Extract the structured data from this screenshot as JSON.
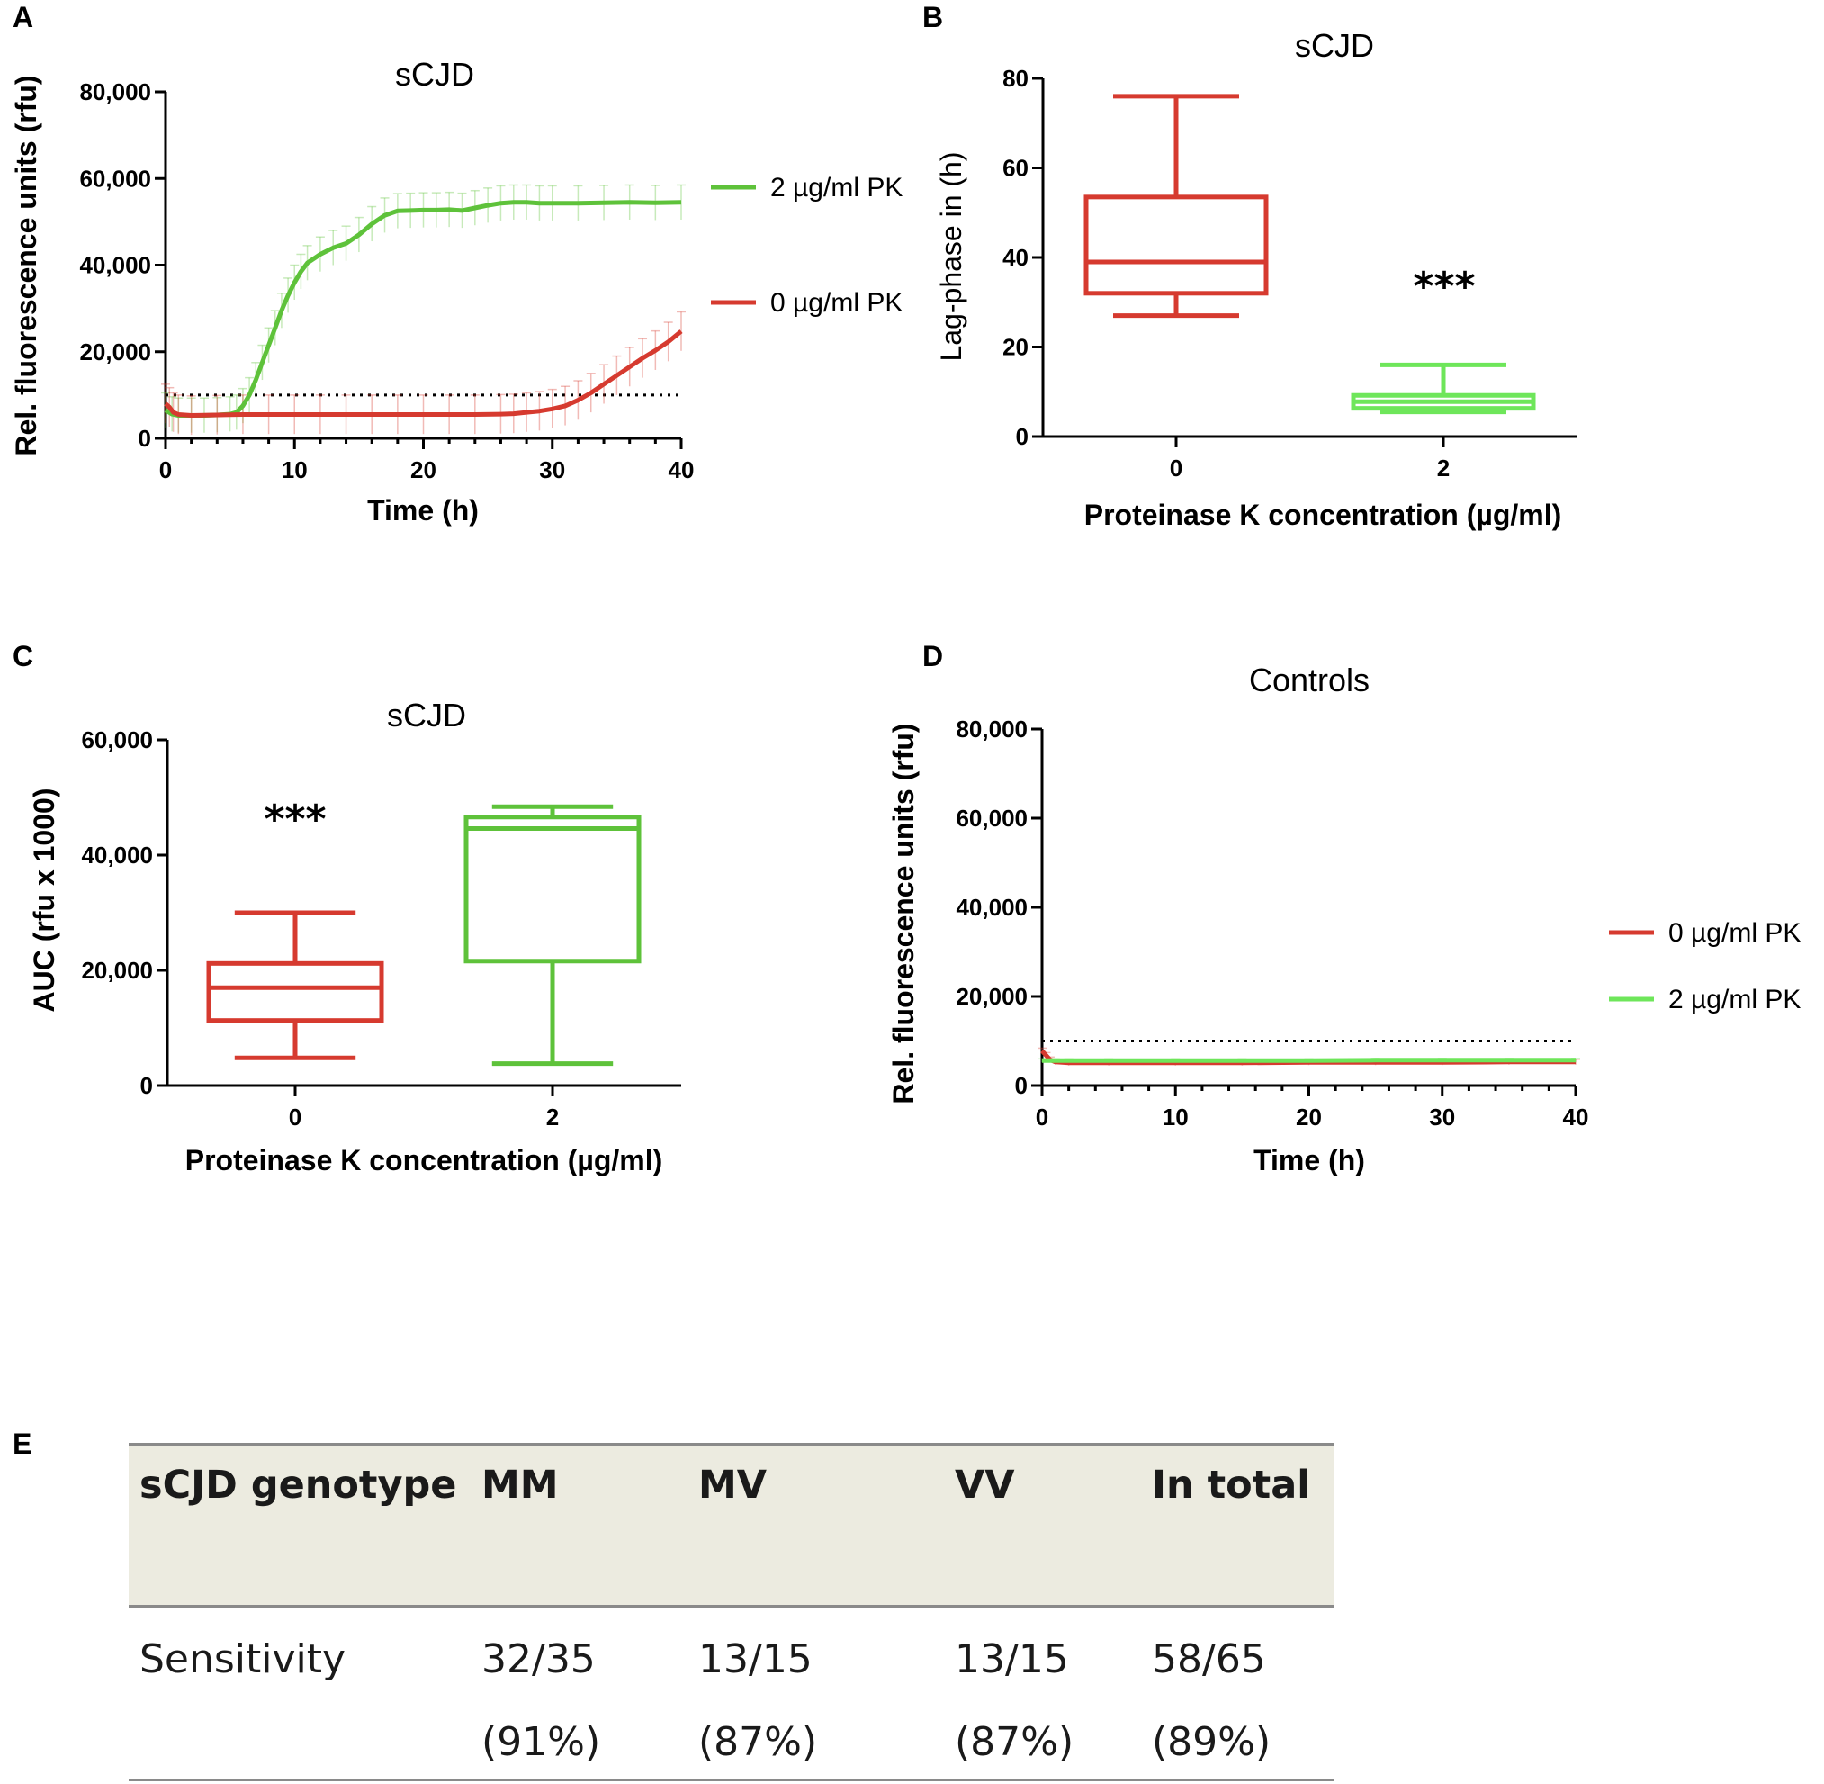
{
  "colors": {
    "red": "#d63a2f",
    "green": "#5ec23a",
    "lightgreen": "#6ee65a",
    "black": "#000000"
  },
  "chart_data": [
    {
      "panel": "A",
      "type": "line",
      "title": "sCJD",
      "xlabel": "Time (h)",
      "ylabel": "Rel. fluorescence units (rfu)",
      "xlim": [
        0,
        40
      ],
      "ylim": [
        0,
        80000
      ],
      "xticks": [
        "0",
        "10",
        "20",
        "30",
        "40"
      ],
      "yticks": [
        "0",
        "20,000",
        "40,000",
        "60,000",
        "80,000"
      ],
      "threshold": 10000,
      "legend_position": "right",
      "series": [
        {
          "name": "2 µg/ml PK",
          "color": "#5ec23a",
          "x": [
            0,
            0.5,
            1,
            2,
            3,
            4,
            5,
            5.5,
            6,
            6.5,
            7,
            7.5,
            8,
            8.5,
            9,
            9.5,
            10,
            10.5,
            11,
            12,
            13,
            14,
            15,
            16,
            17,
            18,
            19,
            20,
            21,
            22,
            23,
            24,
            25,
            26,
            27,
            28,
            29,
            30,
            32,
            34,
            36,
            38,
            40
          ],
          "y": [
            6500,
            5600,
            5300,
            5300,
            5300,
            5400,
            5600,
            6000,
            7500,
            10000,
            13500,
            17500,
            21500,
            25500,
            29500,
            33000,
            36000,
            38500,
            40500,
            42500,
            44000,
            45000,
            47000,
            49500,
            51500,
            52500,
            52600,
            52700,
            52700,
            52800,
            52600,
            53200,
            53800,
            54300,
            54500,
            54500,
            54300,
            54300,
            54300,
            54400,
            54500,
            54400,
            54500
          ],
          "error": 4000
        },
        {
          "name": "0 µg/ml PK",
          "color": "#d63a2f",
          "x": [
            0,
            0.3,
            0.6,
            1,
            2,
            4,
            6,
            8,
            10,
            12,
            14,
            16,
            18,
            20,
            22,
            24,
            26,
            27,
            28,
            29,
            30,
            31,
            32,
            33,
            34,
            35,
            36,
            37,
            38,
            39,
            40
          ],
          "y": [
            8000,
            7200,
            6000,
            5500,
            5300,
            5400,
            5500,
            5500,
            5500,
            5500,
            5500,
            5500,
            5500,
            5500,
            5500,
            5500,
            5600,
            5700,
            6000,
            6300,
            6800,
            7500,
            8800,
            10500,
            12500,
            14500,
            16500,
            18500,
            20300,
            22300,
            24700
          ],
          "error": 4500
        }
      ]
    },
    {
      "panel": "B",
      "type": "box",
      "title": "sCJD",
      "xlabel": "Proteinase K concentration (µg/ml)",
      "ylabel": "Lag-phase in (h)",
      "ylim": [
        0,
        80
      ],
      "yticks": [
        "0",
        "20",
        "40",
        "60",
        "80"
      ],
      "categories": [
        "0",
        "2"
      ],
      "boxes": [
        {
          "category": "0",
          "min": 27,
          "q1": 32,
          "median": 39,
          "q3": 53.5,
          "max": 76,
          "color": "#d63a2f"
        },
        {
          "category": "2",
          "min": 5.5,
          "q1": 6.3,
          "median": 7.8,
          "q3": 9.2,
          "max": 16,
          "color": "#6ee65a"
        }
      ],
      "annotation": "***"
    },
    {
      "panel": "C",
      "type": "box",
      "title": "sCJD",
      "xlabel": "Proteinase K concentration (µg/ml)",
      "ylabel": "AUC (rfu x 1000)",
      "ylim": [
        0,
        60000
      ],
      "yticks": [
        "0",
        "20,000",
        "40,000",
        "60,000"
      ],
      "categories": [
        "0",
        "2"
      ],
      "boxes": [
        {
          "category": "0",
          "min": 4800,
          "q1": 11300,
          "median": 17000,
          "q3": 21200,
          "max": 30000,
          "color": "#d63a2f"
        },
        {
          "category": "2",
          "min": 3800,
          "q1": 21600,
          "median": 44600,
          "q3": 46600,
          "max": 48400,
          "color": "#5ec23a"
        }
      ],
      "annotation": "***"
    },
    {
      "panel": "D",
      "type": "line",
      "title": "Controls",
      "xlabel": "Time (h)",
      "ylabel": "Rel. fluorescence units (rfu)",
      "xlim": [
        0,
        40
      ],
      "ylim": [
        0,
        80000
      ],
      "xticks": [
        "0",
        "10",
        "20",
        "30",
        "40"
      ],
      "yticks": [
        "0",
        "20,000",
        "40,000",
        "60,000",
        "80,000"
      ],
      "threshold": 10000,
      "legend_position": "right",
      "series": [
        {
          "name": "0 µg/ml PK",
          "color": "#d63a2f",
          "x": [
            0,
            0.3,
            0.6,
            1,
            2,
            5,
            10,
            15,
            20,
            25,
            30,
            35,
            40
          ],
          "y": [
            7800,
            6800,
            5800,
            5300,
            5100,
            5100,
            5100,
            5100,
            5200,
            5200,
            5200,
            5300,
            5300
          ],
          "error": 600
        },
        {
          "name": "2 µg/ml PK",
          "color": "#6ee65a",
          "x": [
            0,
            1,
            2,
            5,
            10,
            15,
            20,
            25,
            30,
            35,
            40
          ],
          "y": [
            5600,
            5600,
            5600,
            5600,
            5600,
            5600,
            5600,
            5700,
            5700,
            5700,
            5700
          ],
          "error": 400
        }
      ]
    }
  ],
  "panel_letters": [
    "A",
    "B",
    "C",
    "D",
    "E"
  ],
  "table_e": {
    "headers": [
      "sCJD genotype",
      "MM",
      "MV",
      "VV",
      "In total"
    ],
    "row_label": "Sensitivity",
    "fractions": [
      "32/35",
      "13/15",
      "13/15",
      "58/65"
    ],
    "percents": [
      "(91%)",
      "(87%)",
      "(87%)",
      "(89%)"
    ]
  }
}
